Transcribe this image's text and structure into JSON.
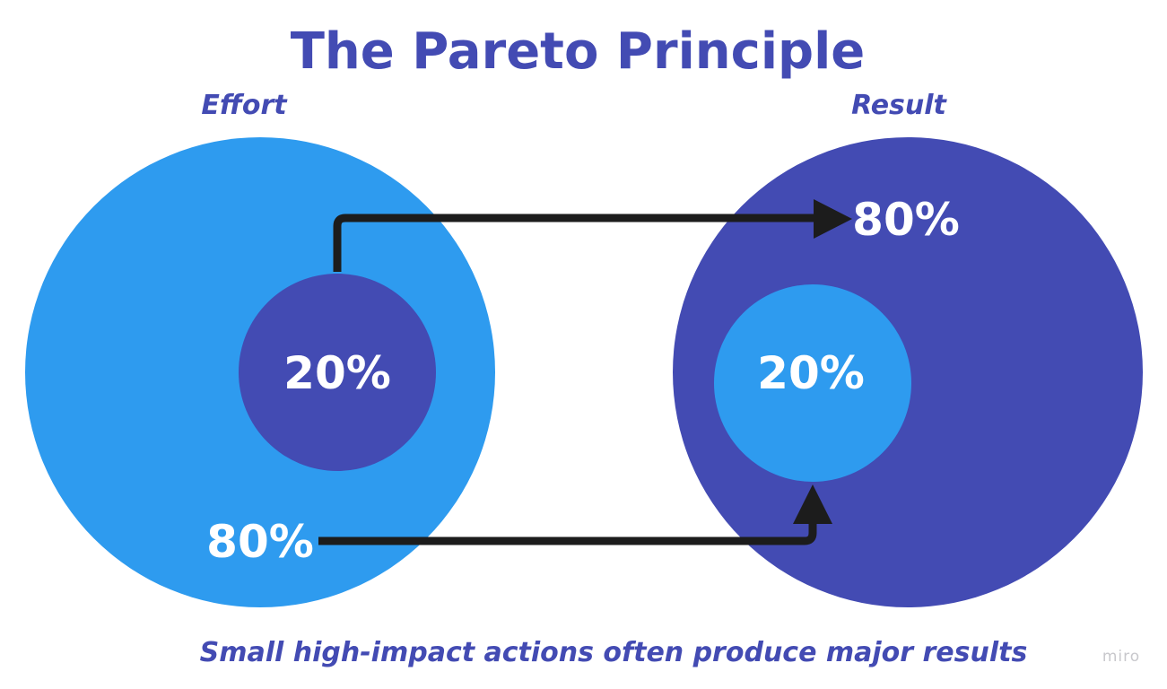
{
  "title": "The Pareto Principle",
  "effort": {
    "label": "Effort",
    "inner_percent": "20%",
    "outer_percent": "80%"
  },
  "result": {
    "label": "Result",
    "inner_percent": "20%",
    "outer_percent": "80%"
  },
  "caption": "Small high-impact actions often produce major results",
  "watermark": "miro",
  "colors": {
    "light_blue": "#2e9bef",
    "dark_blue": "#434bb3",
    "text_white": "#ffffff",
    "arrow": "#1c1c1c",
    "watermark": "#c8c8cc"
  }
}
